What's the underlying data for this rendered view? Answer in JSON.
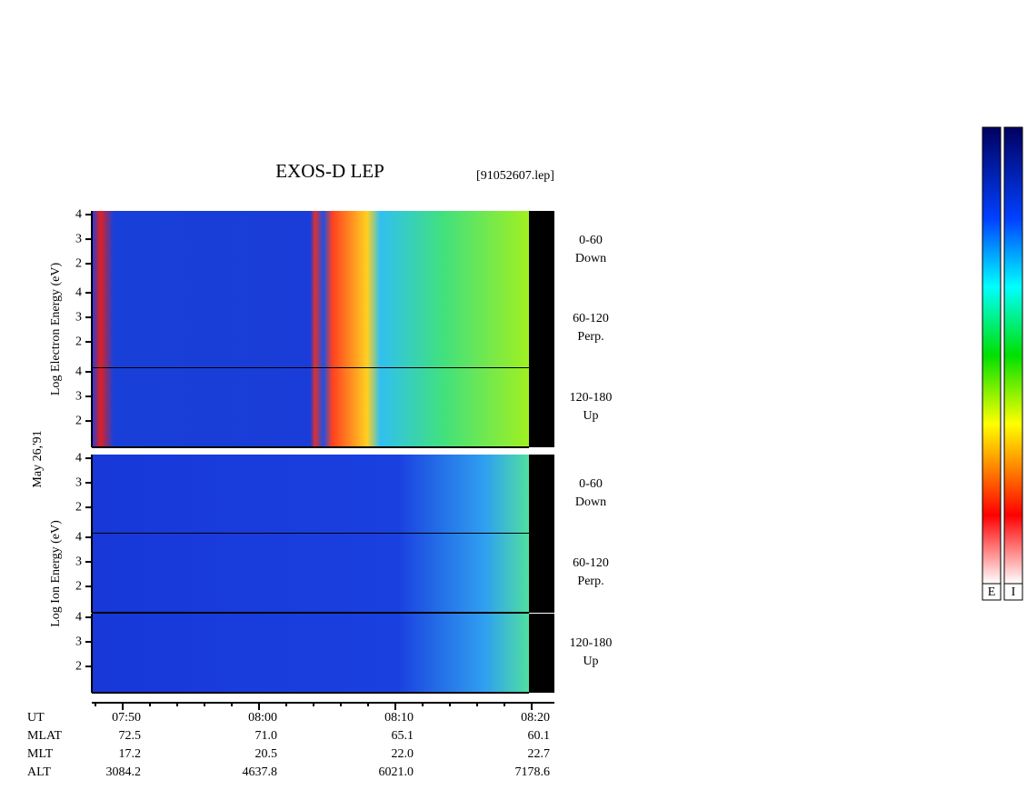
{
  "title": "EXOS-D LEP",
  "file": "[91052607.lep]",
  "date": "May 26,'91",
  "ylim": [
    0.93,
    4.15
  ],
  "yticks": [
    2,
    3,
    4
  ],
  "groups": [
    {
      "label": "Log Electron Energy (eV)",
      "panels": [
        {
          "range": "0-60",
          "direction": "Down"
        },
        {
          "range": "60-120",
          "direction": "Perp."
        },
        {
          "range": "120-180",
          "direction": "Up"
        }
      ]
    },
    {
      "label": "Log Ion Energy (eV)",
      "panels": [
        {
          "range": "0-60",
          "direction": "Down"
        },
        {
          "range": "60-120",
          "direction": "Perp."
        },
        {
          "range": "120-180",
          "direction": "Up"
        }
      ]
    }
  ],
  "ephemeris": [
    {
      "name": "UT",
      "values": [
        "07:50",
        "08:00",
        "08:10",
        "08:20"
      ]
    },
    {
      "name": "MLAT",
      "values": [
        "72.5",
        "71.0",
        "65.1",
        "60.1"
      ]
    },
    {
      "name": "MLT",
      "values": [
        "17.2",
        "20.5",
        "22.0",
        "22.7"
      ]
    },
    {
      "name": "ALT",
      "values": [
        "3084.2",
        "4637.8",
        "6021.0",
        "7178.6"
      ]
    }
  ],
  "colorbars": [
    "E",
    "I"
  ]
}
